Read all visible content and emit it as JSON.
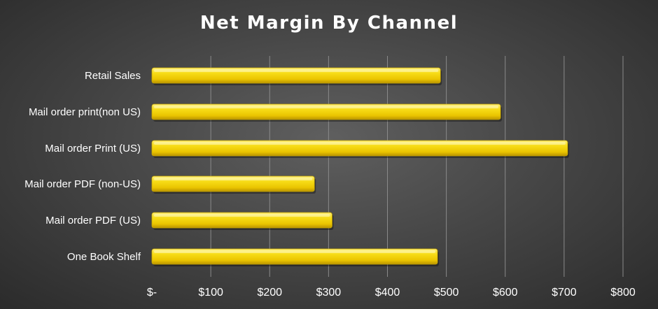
{
  "chart_data": {
    "type": "bar",
    "orientation": "horizontal",
    "title": "Net Margin By Channel",
    "xlabel": "",
    "ylabel": "",
    "categories": [
      "Retail Sales",
      "Mail order print(non US)",
      "Mail order Print (US)",
      "Mail order PDF (non-US)",
      "Mail order PDF (US)",
      "One Book Shelf"
    ],
    "values": [
      490,
      592,
      706,
      276,
      306,
      485
    ],
    "xlim": [
      0,
      800
    ],
    "x_ticks": [
      0,
      100,
      200,
      300,
      400,
      500,
      600,
      700,
      800
    ],
    "x_tick_labels": [
      "$-",
      "$100",
      "$200",
      "$300",
      "$400",
      "$500",
      "$600",
      "$700",
      "$800"
    ],
    "grid": "vertical",
    "legend": "none",
    "bar_color": "#f2d100",
    "background_color": "#454545"
  }
}
